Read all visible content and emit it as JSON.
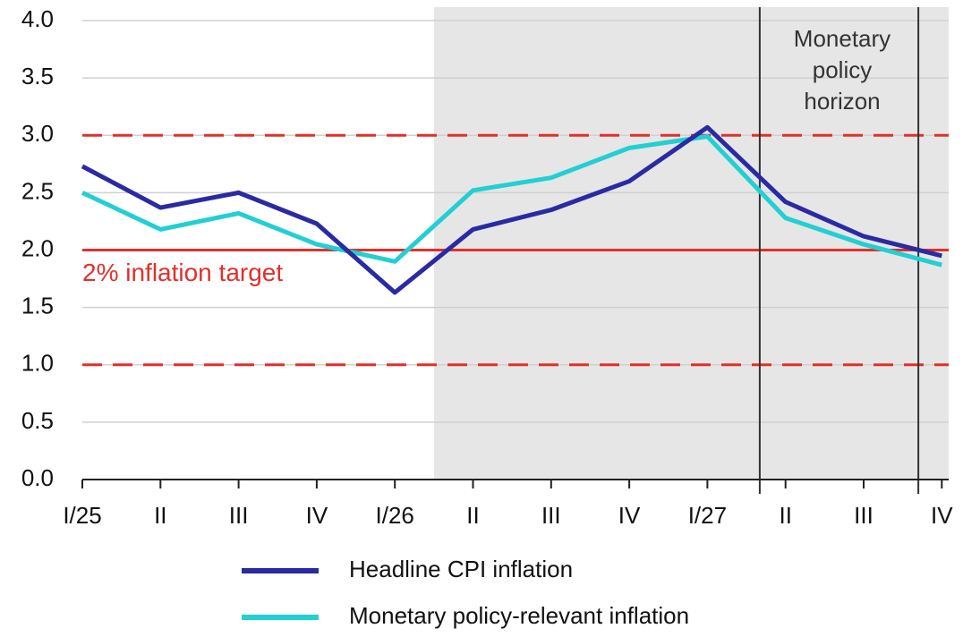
{
  "chart_data": {
    "type": "line",
    "categories": [
      "I/25",
      "II",
      "III",
      "IV",
      "I/26",
      "II",
      "III",
      "IV",
      "I/27",
      "II",
      "III",
      "IV"
    ],
    "series": [
      {
        "name": "Headline CPI inflation",
        "color": "#2a2aa3",
        "values": [
          2.73,
          2.37,
          2.5,
          2.23,
          1.63,
          2.18,
          2.35,
          2.6,
          3.07,
          2.42,
          2.12,
          1.95
        ]
      },
      {
        "name": "Monetary policy-relevant inflation",
        "color": "#22cfd3",
        "values": [
          2.5,
          2.18,
          2.32,
          2.05,
          1.9,
          2.52,
          2.63,
          2.89,
          2.99,
          2.28,
          2.05,
          1.87
        ]
      }
    ],
    "ylim": [
      0,
      4
    ],
    "yticks": [
      {
        "value": 0,
        "label": "0.0"
      },
      0.5,
      {
        "value": 1,
        "label": "1.0"
      },
      1.5,
      {
        "value": 2,
        "label": "2.0"
      },
      2.5,
      {
        "value": 3,
        "label": "3.0"
      },
      3.5,
      {
        "value": 4,
        "label": "4.0"
      }
    ],
    "grid": true,
    "reference_lines": [
      {
        "value": 2,
        "label": "2% inflation target",
        "color": "#e0302a",
        "style": "solid"
      },
      {
        "value": 3,
        "color": "#e0302a",
        "style": "dashed"
      },
      {
        "value": 1,
        "color": "#e0302a",
        "style": "dashed"
      }
    ],
    "annotation": "Monetary policy horizon",
    "legend": "bottom"
  }
}
